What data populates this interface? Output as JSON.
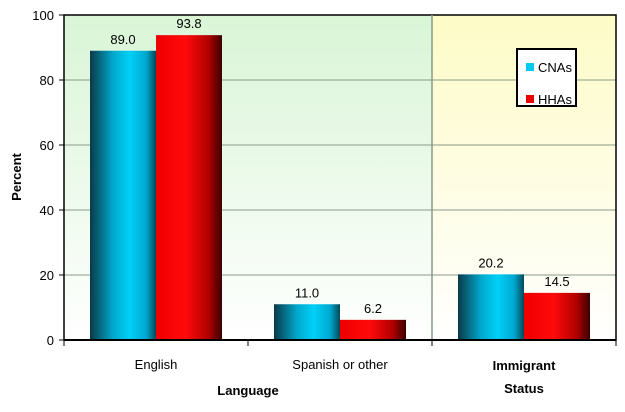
{
  "chart_data": {
    "type": "bar",
    "title": "",
    "ylabel": "Percent",
    "ylim": [
      0,
      100
    ],
    "yticks": [
      0,
      20,
      40,
      60,
      80,
      100
    ],
    "grid": true,
    "legend_placement": "top-right",
    "groups": [
      {
        "label": "Language",
        "categories": [
          "English",
          "Spanish or other"
        ],
        "background": "#dff7dc"
      },
      {
        "label": "Immigrant Status",
        "label_lines": [
          "Immigrant",
          "Status"
        ],
        "categories": [
          ""
        ],
        "background": "#fdfccc"
      }
    ],
    "categories": [
      "English",
      "Spanish or other",
      "Immigrant Status"
    ],
    "series": [
      {
        "name": "CNAs",
        "values": [
          89.0,
          11.0,
          20.2
        ],
        "color": "#00c8f0"
      },
      {
        "name": "HHAs",
        "values": [
          93.8,
          6.2,
          14.5
        ],
        "color": "#ee0000"
      }
    ],
    "data_labels": [
      [
        "89.0",
        "11.0",
        "20.2"
      ],
      [
        "93.8",
        "6.2",
        "14.5"
      ]
    ]
  }
}
